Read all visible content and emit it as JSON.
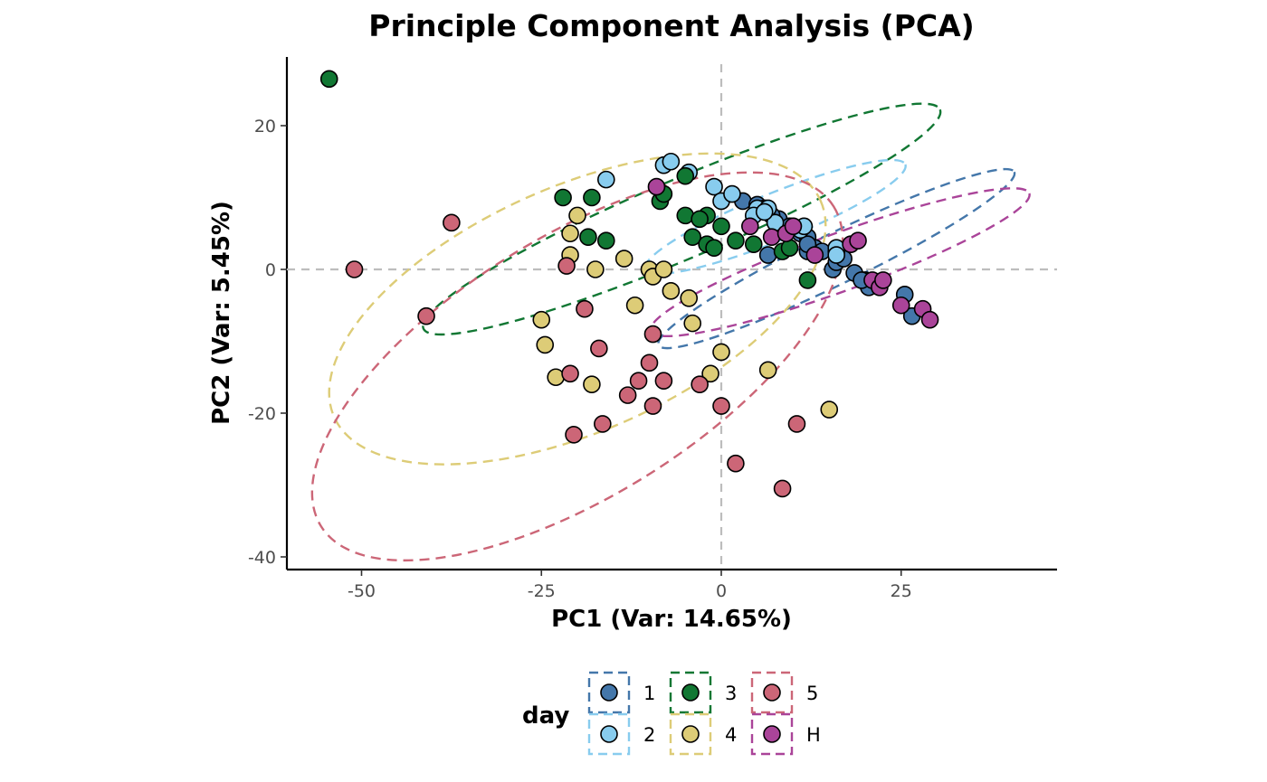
{
  "chart_data": {
    "type": "scatter",
    "title": "Principle Component Analysis (PCA)",
    "xlabel": "PC1 (Var: 14.65%)",
    "ylabel": "PC2 (Var: 5.45%)",
    "xlim": [
      -60,
      47
    ],
    "ylim": [
      -42,
      30
    ],
    "x_ticks": [
      -50,
      -25,
      0,
      25
    ],
    "y_ticks": [
      -40,
      -20,
      0,
      20
    ],
    "x_tick_labels": [
      "-50",
      "-25",
      "0",
      "25"
    ],
    "y_tick_labels": [
      "-40",
      "-20",
      "0",
      "20"
    ],
    "reference_lines": {
      "x": 0,
      "y": 0
    },
    "grid": false,
    "legend": {
      "title": "day",
      "position": "bottom"
    },
    "series": [
      {
        "name": "1",
        "color": "#4477AA",
        "ellipse": {
          "cx": 16,
          "cy": 1.5,
          "a": 27.5,
          "b": 3.5,
          "angle_deg": -26
        },
        "points": [
          [
            3,
            9.5
          ],
          [
            5,
            9
          ],
          [
            6,
            8.5
          ],
          [
            8,
            7
          ],
          [
            10,
            5.5
          ],
          [
            11,
            5
          ],
          [
            12,
            4.5
          ],
          [
            13,
            3
          ],
          [
            12,
            2.5
          ],
          [
            14,
            2.5
          ],
          [
            15.5,
            0
          ],
          [
            16,
            1
          ],
          [
            17,
            1.5
          ],
          [
            18.5,
            -0.5
          ],
          [
            20,
            -1.5
          ],
          [
            20.5,
            -2.5
          ],
          [
            25.5,
            -3.5
          ],
          [
            26.5,
            -6.5
          ],
          [
            6.5,
            2
          ],
          [
            7,
            7.5
          ],
          [
            9.5,
            6
          ],
          [
            12,
            3.5
          ],
          [
            16,
            2.5
          ],
          [
            19.5,
            -1.5
          ]
        ]
      },
      {
        "name": "2",
        "color": "#88CCEE",
        "ellipse": {
          "cx": 7.5,
          "cy": 7.3,
          "a": 19.5,
          "b": 3.3,
          "angle_deg": -22
        },
        "points": [
          [
            -8,
            14.5
          ],
          [
            -7,
            15
          ],
          [
            -4.5,
            13.5
          ],
          [
            -16,
            12.5
          ],
          [
            -1,
            11.5
          ],
          [
            0,
            9.5
          ],
          [
            1.5,
            10.5
          ],
          [
            5,
            8.5
          ],
          [
            4.5,
            7.5
          ],
          [
            6.5,
            8.5
          ],
          [
            7.5,
            6.5
          ],
          [
            11,
            5.5
          ],
          [
            11.5,
            6
          ],
          [
            16,
            3
          ],
          [
            16,
            2
          ],
          [
            6,
            8
          ]
        ]
      },
      {
        "name": "3",
        "color": "#117733",
        "ellipse": {
          "cx": -5.5,
          "cy": 7,
          "a": 39,
          "b": 5.5,
          "angle_deg": -23
        },
        "points": [
          [
            -54.5,
            26.5
          ],
          [
            -22,
            10
          ],
          [
            -18,
            10
          ],
          [
            -8.5,
            9.5
          ],
          [
            -8,
            10.5
          ],
          [
            -5,
            13
          ],
          [
            -5,
            7.5
          ],
          [
            -2,
            7.5
          ],
          [
            -3,
            7
          ],
          [
            -4,
            4.5
          ],
          [
            -2,
            3.5
          ],
          [
            -1,
            3
          ],
          [
            0,
            6
          ],
          [
            2,
            4
          ],
          [
            4.5,
            3.5
          ],
          [
            8.5,
            2.5
          ],
          [
            9.5,
            3
          ],
          [
            12,
            -1.5
          ],
          [
            -16,
            4
          ],
          [
            -18.5,
            4.5
          ]
        ]
      },
      {
        "name": "4",
        "color": "#DDCC77",
        "ellipse": {
          "cx": -20,
          "cy": -5.5,
          "a": 37,
          "b": 17,
          "angle_deg": -24
        },
        "points": [
          [
            -20,
            7.5
          ],
          [
            -21,
            5
          ],
          [
            -21,
            2
          ],
          [
            -13.5,
            1.5
          ],
          [
            -17.5,
            0
          ],
          [
            -10,
            0
          ],
          [
            -9.5,
            -1
          ],
          [
            -8,
            0
          ],
          [
            -7,
            -3
          ],
          [
            -4.5,
            -4
          ],
          [
            -4,
            -7.5
          ],
          [
            -12,
            -5
          ],
          [
            -25,
            -7
          ],
          [
            -24.5,
            -10.5
          ],
          [
            -23,
            -15
          ],
          [
            -18,
            -16
          ],
          [
            -1.5,
            -14.5
          ],
          [
            0,
            -11.5
          ],
          [
            6.5,
            -14
          ],
          [
            15,
            -19.5
          ]
        ]
      },
      {
        "name": "5",
        "color": "#CC6677",
        "ellipse": {
          "cx": -20,
          "cy": -13.5,
          "a": 42,
          "b": 18,
          "angle_deg": -32
        },
        "points": [
          [
            -51,
            0
          ],
          [
            -37.5,
            6.5
          ],
          [
            -41,
            -6.5
          ],
          [
            -21.5,
            0.5
          ],
          [
            -19,
            -5.5
          ],
          [
            -17,
            -11
          ],
          [
            -21,
            -14.5
          ],
          [
            -20.5,
            -23
          ],
          [
            -16.5,
            -21.5
          ],
          [
            -13,
            -17.5
          ],
          [
            -11.5,
            -15.5
          ],
          [
            -10,
            -13
          ],
          [
            -9.5,
            -9
          ],
          [
            -9.5,
            -19
          ],
          [
            -8,
            -15.5
          ],
          [
            -3,
            -16
          ],
          [
            0,
            -19
          ],
          [
            2,
            -27
          ],
          [
            8.5,
            -30.5
          ],
          [
            10.5,
            -21.5
          ]
        ]
      },
      {
        "name": "H",
        "color": "#AA4499",
        "ellipse": {
          "cx": 16.5,
          "cy": 1,
          "a": 28,
          "b": 4,
          "angle_deg": -20
        },
        "points": [
          [
            -9,
            11.5
          ],
          [
            4,
            6
          ],
          [
            7,
            4.5
          ],
          [
            9,
            5
          ],
          [
            10,
            6
          ],
          [
            13,
            2
          ],
          [
            18,
            3.5
          ],
          [
            19,
            4
          ],
          [
            21,
            -1.5
          ],
          [
            22,
            -2.5
          ],
          [
            22.5,
            -1.5
          ],
          [
            25,
            -5
          ],
          [
            28,
            -5.5
          ],
          [
            29,
            -7
          ]
        ]
      }
    ],
    "legend_layout": [
      [
        "1",
        "3",
        "5"
      ],
      [
        "2",
        "4",
        "H"
      ]
    ]
  }
}
